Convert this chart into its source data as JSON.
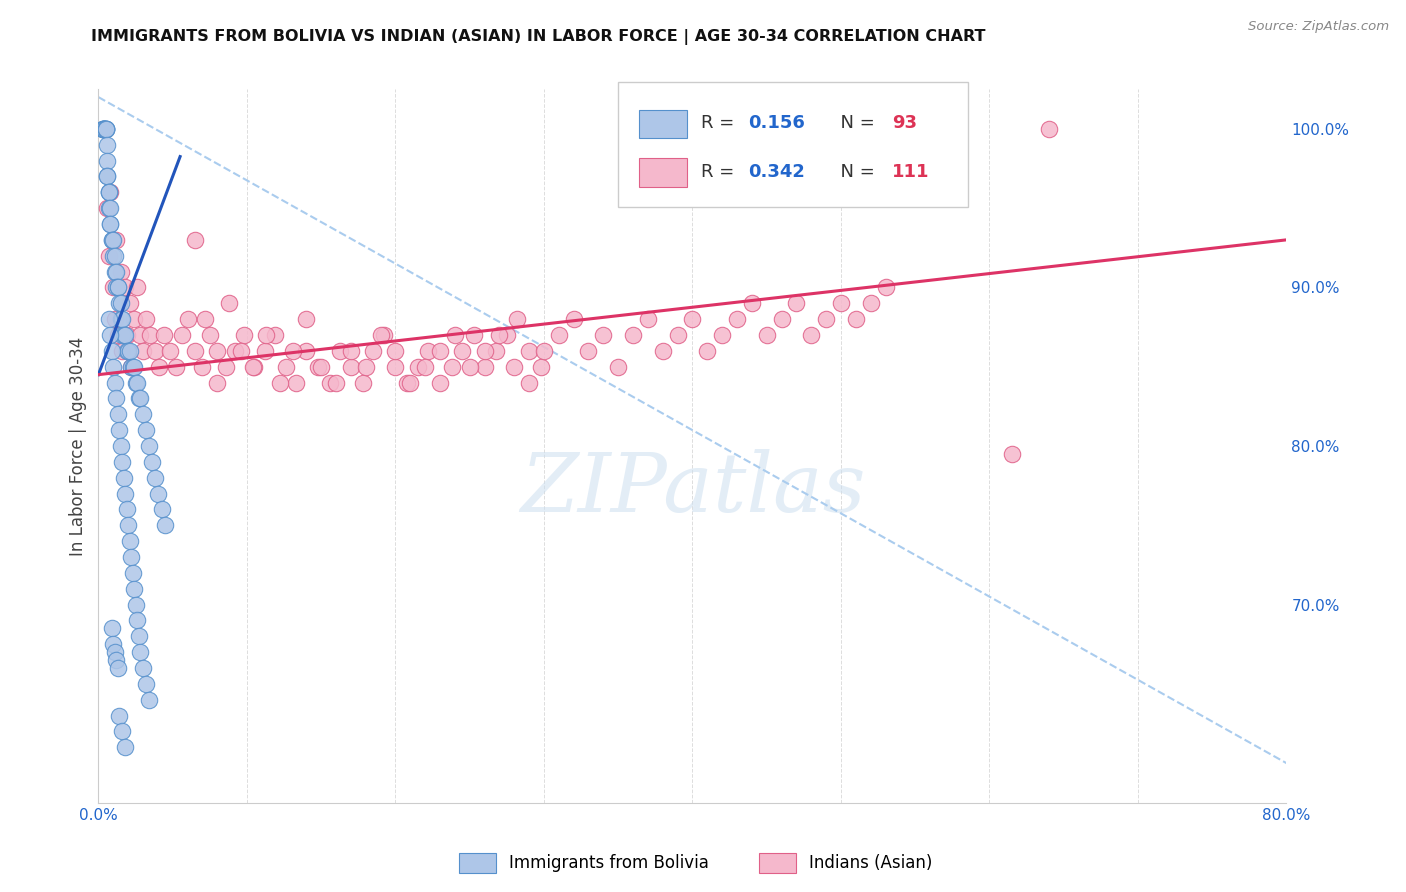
{
  "title": "IMMIGRANTS FROM BOLIVIA VS INDIAN (ASIAN) IN LABOR FORCE | AGE 30-34 CORRELATION CHART",
  "source": "Source: ZipAtlas.com",
  "ylabel": "In Labor Force | Age 30-34",
  "xlim": [
    0.0,
    0.8
  ],
  "ylim": [
    0.575,
    1.025
  ],
  "yticks_right": [
    0.7,
    0.8,
    0.9,
    1.0
  ],
  "yticklabels_right": [
    "70.0%",
    "80.0%",
    "90.0%",
    "100.0%"
  ],
  "bolivia_color": "#aec6e8",
  "bolivia_edge_color": "#5590cc",
  "indian_color": "#f5b8cc",
  "indian_edge_color": "#e06088",
  "bolivia_R": 0.156,
  "bolivia_N": 93,
  "indian_R": 0.342,
  "indian_N": 111,
  "trend_bolivia_color": "#2255bb",
  "trend_indian_color": "#dd3366",
  "legend_label_bolivia": "Immigrants from Bolivia",
  "legend_label_indian": "Indians (Asian)",
  "watermark_text": "ZIPatlas",
  "r_color": "#2266cc",
  "n_color": "#dd3355",
  "diag_color": "#aaccee",
  "grid_color": "#dddddd",
  "tick_color": "#2266cc",
  "bolivia_x": [
    0.003,
    0.003,
    0.003,
    0.003,
    0.004,
    0.004,
    0.004,
    0.004,
    0.004,
    0.005,
    0.005,
    0.005,
    0.005,
    0.005,
    0.006,
    0.006,
    0.006,
    0.006,
    0.007,
    0.007,
    0.007,
    0.007,
    0.008,
    0.008,
    0.008,
    0.009,
    0.009,
    0.01,
    0.01,
    0.011,
    0.011,
    0.012,
    0.012,
    0.013,
    0.013,
    0.014,
    0.015,
    0.015,
    0.016,
    0.016,
    0.017,
    0.018,
    0.019,
    0.02,
    0.021,
    0.022,
    0.023,
    0.024,
    0.025,
    0.026,
    0.027,
    0.028,
    0.03,
    0.032,
    0.034,
    0.036,
    0.038,
    0.04,
    0.043,
    0.045,
    0.007,
    0.008,
    0.009,
    0.01,
    0.011,
    0.012,
    0.013,
    0.014,
    0.015,
    0.016,
    0.017,
    0.018,
    0.019,
    0.02,
    0.021,
    0.022,
    0.023,
    0.024,
    0.025,
    0.026,
    0.027,
    0.028,
    0.03,
    0.032,
    0.034,
    0.014,
    0.016,
    0.018,
    0.009,
    0.01,
    0.011,
    0.012,
    0.013
  ],
  "bolivia_y": [
    1.0,
    1.0,
    1.0,
    1.0,
    1.0,
    1.0,
    1.0,
    1.0,
    1.0,
    1.0,
    1.0,
    1.0,
    1.0,
    1.0,
    0.99,
    0.98,
    0.97,
    0.97,
    0.96,
    0.96,
    0.96,
    0.95,
    0.95,
    0.94,
    0.94,
    0.93,
    0.93,
    0.93,
    0.92,
    0.92,
    0.91,
    0.91,
    0.9,
    0.9,
    0.9,
    0.89,
    0.89,
    0.88,
    0.88,
    0.87,
    0.87,
    0.87,
    0.86,
    0.86,
    0.86,
    0.85,
    0.85,
    0.85,
    0.84,
    0.84,
    0.83,
    0.83,
    0.82,
    0.81,
    0.8,
    0.79,
    0.78,
    0.77,
    0.76,
    0.75,
    0.88,
    0.87,
    0.86,
    0.85,
    0.84,
    0.83,
    0.82,
    0.81,
    0.8,
    0.79,
    0.78,
    0.77,
    0.76,
    0.75,
    0.74,
    0.73,
    0.72,
    0.71,
    0.7,
    0.69,
    0.68,
    0.67,
    0.66,
    0.65,
    0.64,
    0.63,
    0.62,
    0.61,
    0.685,
    0.675,
    0.67,
    0.665,
    0.66
  ],
  "indian_x": [
    0.006,
    0.007,
    0.008,
    0.01,
    0.011,
    0.012,
    0.013,
    0.015,
    0.016,
    0.018,
    0.019,
    0.021,
    0.022,
    0.024,
    0.026,
    0.028,
    0.03,
    0.032,
    0.035,
    0.038,
    0.041,
    0.044,
    0.048,
    0.052,
    0.056,
    0.06,
    0.065,
    0.07,
    0.075,
    0.08,
    0.086,
    0.092,
    0.098,
    0.105,
    0.112,
    0.119,
    0.126,
    0.133,
    0.14,
    0.148,
    0.156,
    0.163,
    0.17,
    0.178,
    0.185,
    0.192,
    0.2,
    0.208,
    0.215,
    0.222,
    0.23,
    0.238,
    0.245,
    0.253,
    0.26,
    0.268,
    0.275,
    0.282,
    0.29,
    0.298,
    0.065,
    0.072,
    0.08,
    0.088,
    0.096,
    0.104,
    0.113,
    0.122,
    0.131,
    0.14,
    0.15,
    0.16,
    0.17,
    0.18,
    0.19,
    0.2,
    0.21,
    0.22,
    0.23,
    0.24,
    0.25,
    0.26,
    0.27,
    0.28,
    0.29,
    0.3,
    0.31,
    0.32,
    0.33,
    0.34,
    0.35,
    0.36,
    0.37,
    0.38,
    0.39,
    0.4,
    0.41,
    0.42,
    0.43,
    0.44,
    0.45,
    0.46,
    0.47,
    0.48,
    0.49,
    0.5,
    0.51,
    0.52,
    0.53,
    0.615,
    0.64
  ],
  "indian_y": [
    0.95,
    0.92,
    0.96,
    0.9,
    0.88,
    0.93,
    0.87,
    0.91,
    0.86,
    0.9,
    0.87,
    0.89,
    0.85,
    0.88,
    0.9,
    0.87,
    0.86,
    0.88,
    0.87,
    0.86,
    0.85,
    0.87,
    0.86,
    0.85,
    0.87,
    0.88,
    0.86,
    0.85,
    0.87,
    0.86,
    0.85,
    0.86,
    0.87,
    0.85,
    0.86,
    0.87,
    0.85,
    0.84,
    0.86,
    0.85,
    0.84,
    0.86,
    0.85,
    0.84,
    0.86,
    0.87,
    0.85,
    0.84,
    0.85,
    0.86,
    0.84,
    0.85,
    0.86,
    0.87,
    0.85,
    0.86,
    0.87,
    0.88,
    0.86,
    0.85,
    0.93,
    0.88,
    0.84,
    0.89,
    0.86,
    0.85,
    0.87,
    0.84,
    0.86,
    0.88,
    0.85,
    0.84,
    0.86,
    0.85,
    0.87,
    0.86,
    0.84,
    0.85,
    0.86,
    0.87,
    0.85,
    0.86,
    0.87,
    0.85,
    0.84,
    0.86,
    0.87,
    0.88,
    0.86,
    0.87,
    0.85,
    0.87,
    0.88,
    0.86,
    0.87,
    0.88,
    0.86,
    0.87,
    0.88,
    0.89,
    0.87,
    0.88,
    0.89,
    0.87,
    0.88,
    0.89,
    0.88,
    0.89,
    0.9,
    0.795,
    1.0
  ]
}
